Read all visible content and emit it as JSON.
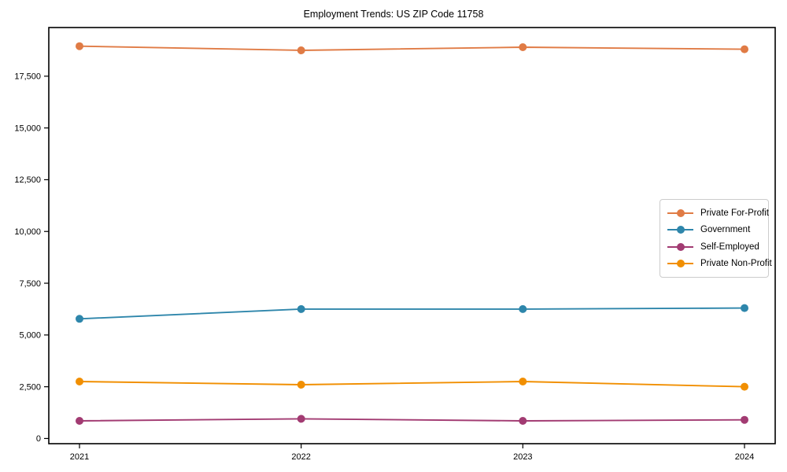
{
  "chart_data": {
    "type": "line",
    "title": "Employment Trends: US ZIP Code 11758",
    "xlabel": "",
    "ylabel": "",
    "x": [
      2021,
      2022,
      2023,
      2024
    ],
    "xtick_labels": [
      "2021",
      "2022",
      "2023",
      "2024"
    ],
    "ytick_values": [
      0,
      2500,
      5000,
      7500,
      10000,
      12500,
      15000,
      17500
    ],
    "ytick_labels": [
      "0",
      "2,500",
      "5,000",
      "7,500",
      "10,000",
      "12,500",
      "15,000",
      "17,500"
    ],
    "ylim": [
      -250,
      19850
    ],
    "grid": false,
    "legend_position": "center right",
    "marker": "circle",
    "series": [
      {
        "name": "Private For-Profit",
        "color": "#E07B45",
        "values": [
          18950,
          18750,
          18900,
          18800
        ]
      },
      {
        "name": "Government",
        "color": "#2E86AB",
        "values": [
          5780,
          6250,
          6250,
          6300
        ]
      },
      {
        "name": "Self-Employed",
        "color": "#A23B72",
        "values": [
          850,
          950,
          850,
          900
        ]
      },
      {
        "name": "Private Non-Profit",
        "color": "#F18F01",
        "values": [
          2750,
          2600,
          2750,
          2500
        ]
      }
    ]
  }
}
